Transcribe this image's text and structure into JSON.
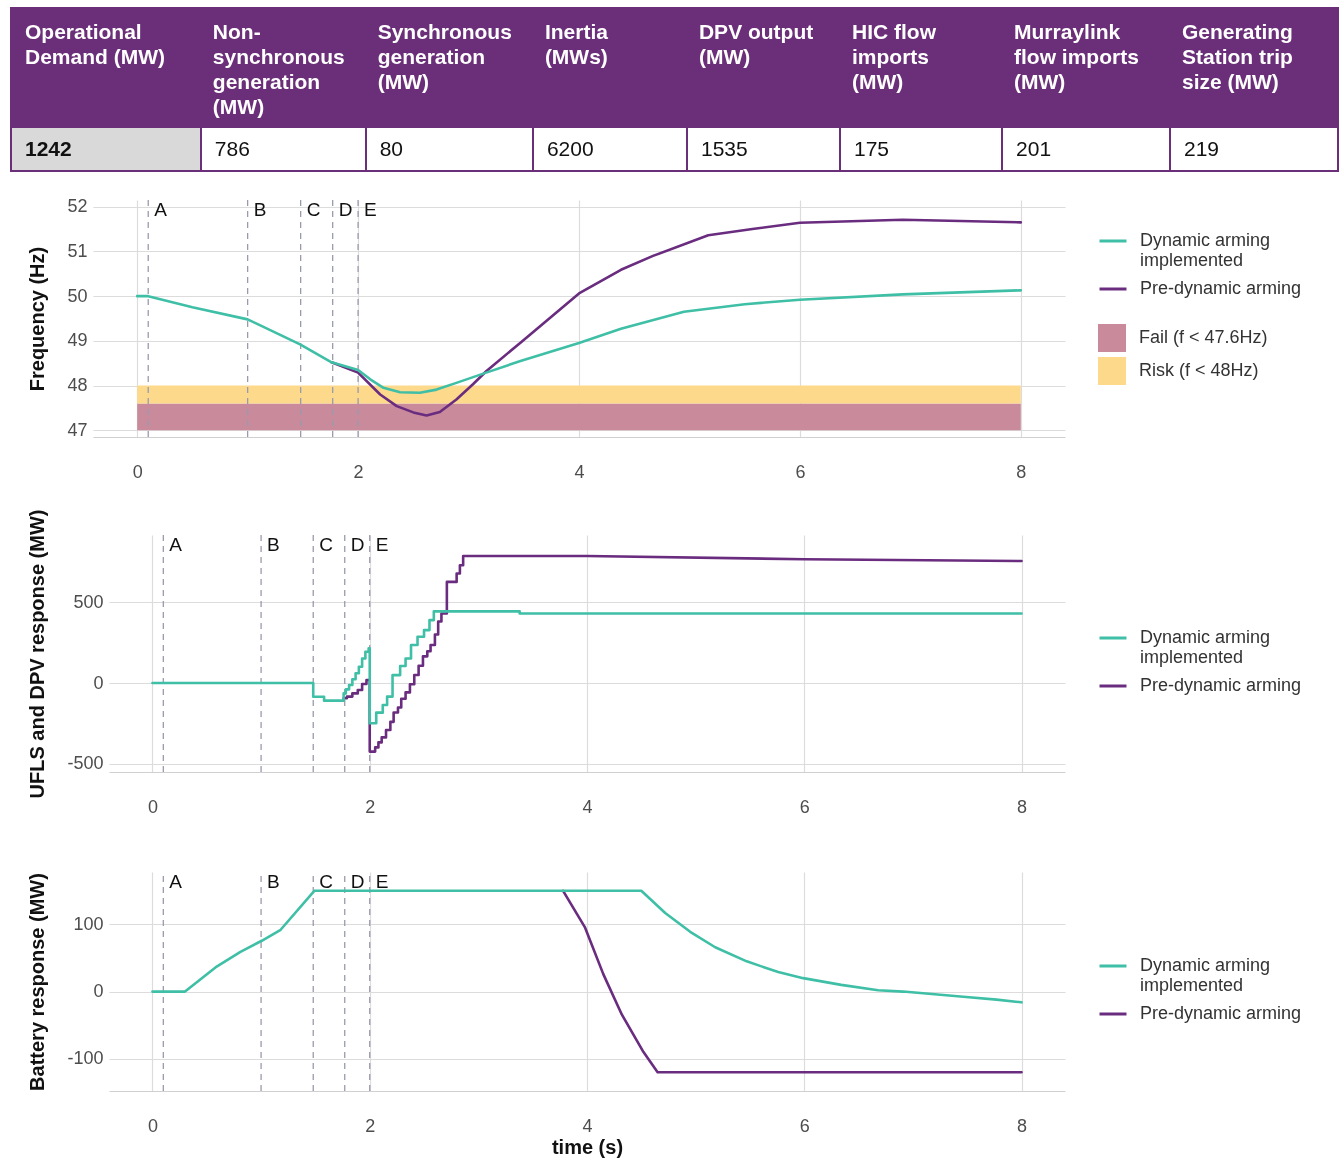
{
  "chart_data": [
    {
      "type": "other",
      "categories": [
        "Operational Demand (MW)",
        "Non-synchronous generation (MW)",
        "Synchronous generation (MW)",
        "Inertia (MWs)",
        "DPV output (MW)",
        "HIC flow imports (MW)",
        "Murraylink flow imports (MW)",
        "Generating Station trip size (MW)"
      ],
      "values": [
        1242,
        786,
        80,
        6200,
        1535,
        175,
        201,
        219
      ],
      "data_labels": true
    },
    {
      "type": "line",
      "ylabel": "Frequency (Hz)",
      "xlim": [
        -0.4,
        8.4
      ],
      "xticks": [
        0,
        2,
        4,
        6,
        8
      ],
      "ylim": [
        46.85,
        52.15
      ],
      "yticks": [
        47,
        48,
        49,
        50,
        51,
        52
      ],
      "grid": true,
      "legend": "right",
      "series": [
        {
          "name": "Dynamic arming implemented",
          "color": "#3fbfa6",
          "x": [
            0,
            0.1,
            0.5,
            1.0,
            1.29,
            1.475,
            1.76,
            2.0,
            2.11,
            2.23,
            2.38,
            2.56,
            2.71,
            2.89,
            3.16,
            3.47,
            4.0,
            4.38,
            4.95,
            5.5,
            6.0,
            6.93,
            8.0
          ],
          "values": [
            50.0,
            50.0,
            49.75,
            49.48,
            49.14,
            48.92,
            48.52,
            48.35,
            48.14,
            47.95,
            47.85,
            47.84,
            47.91,
            48.06,
            48.29,
            48.55,
            48.95,
            49.27,
            49.65,
            49.82,
            49.92,
            50.04,
            50.13
          ]
        },
        {
          "name": "Pre-dynamic arming",
          "color": "#6a2c7f",
          "x": [
            1.76,
            2.0,
            2.2,
            2.35,
            2.5,
            2.62,
            2.74,
            2.89,
            3.04,
            3.16,
            3.47,
            4.0,
            4.38,
            4.67,
            5.17,
            5.57,
            6.0,
            6.93,
            8.0
          ],
          "values": [
            48.52,
            48.29,
            47.8,
            47.54,
            47.4,
            47.33,
            47.41,
            47.69,
            48.03,
            48.32,
            48.96,
            50.06,
            50.59,
            50.9,
            51.36,
            51.5,
            51.64,
            51.71,
            51.65
          ]
        }
      ],
      "ref_lines": [
        {
          "axis": "x",
          "value": 0.1,
          "label": "A",
          "line_style": "dashed",
          "color": "#9a9aae"
        },
        {
          "axis": "x",
          "value": 1,
          "label": "B",
          "line_style": "dashed",
          "color": "#9a9aae"
        },
        {
          "axis": "x",
          "value": 1.48,
          "label": "C",
          "line_style": "dashed",
          "color": "#9a9aae"
        },
        {
          "axis": "x",
          "value": 1.77,
          "label": "D",
          "line_style": "dashed",
          "color": "#9a9aae"
        },
        {
          "axis": "x",
          "value": 2,
          "label": "E",
          "line_style": "dashed",
          "color": "#9a9aae"
        }
      ],
      "bands": [
        {
          "axis": "y",
          "from": 47,
          "to": 47.6,
          "label": "Fail (f < 47.6Hz)",
          "color": "#c98a9c"
        },
        {
          "axis": "y",
          "from": 47.6,
          "to": 48,
          "label": "Risk (f < 48Hz)",
          "color": "#fdd98c"
        }
      ]
    },
    {
      "type": "line",
      "ylabel": "UFLS and DPV response (MW)",
      "xlim": [
        -0.4,
        8.4
      ],
      "xticks": [
        0,
        2,
        4,
        6,
        8
      ],
      "ylim": [
        -550,
        915
      ],
      "yticks": [
        -500,
        0,
        500
      ],
      "grid": true,
      "legend": "right",
      "series": [
        {
          "name": "Dynamic arming implemented",
          "color": "#3fbfa6",
          "x": [
            0,
            1.48,
            1.48,
            1.58,
            1.58,
            1.76,
            1.76,
            1.78,
            1.78,
            1.81,
            1.81,
            1.84,
            1.84,
            1.87,
            1.87,
            1.9,
            1.9,
            1.93,
            1.93,
            1.96,
            1.96,
            1.99,
            1.99,
            2.0,
            2.0,
            2.06,
            2.06,
            2.12,
            2.12,
            2.16,
            2.16,
            2.21,
            2.21,
            2.28,
            2.28,
            2.33,
            2.33,
            2.38,
            2.38,
            2.44,
            2.44,
            2.5,
            2.5,
            2.55,
            2.55,
            2.59,
            2.59,
            2.67,
            2.67,
            3.38,
            3.38,
            8.0
          ],
          "values": [
            0,
            0,
            -85,
            -85,
            -109,
            -109,
            -64,
            -64,
            -39,
            -39,
            -12,
            -12,
            23,
            23,
            60,
            60,
            101,
            101,
            152,
            152,
            193,
            193,
            214,
            214,
            -249,
            -249,
            -183,
            -183,
            -136,
            -136,
            -84,
            -84,
            49,
            49,
            105,
            105,
            152,
            152,
            235,
            235,
            286,
            286,
            327,
            327,
            389,
            389,
            443,
            443,
            443,
            443,
            430,
            430
          ]
        },
        {
          "name": "Pre-dynamic arming",
          "color": "#6a2c7f",
          "x": [
            1.76,
            1.79,
            1.79,
            1.84,
            1.84,
            1.89,
            1.89,
            1.93,
            1.93,
            1.97,
            1.97,
            2.0,
            2.0,
            2.05,
            2.05,
            2.08,
            2.08,
            2.11,
            2.11,
            2.15,
            2.15,
            2.19,
            2.19,
            2.22,
            2.22,
            2.26,
            2.26,
            2.29,
            2.29,
            2.33,
            2.33,
            2.37,
            2.37,
            2.41,
            2.41,
            2.45,
            2.45,
            2.49,
            2.49,
            2.53,
            2.53,
            2.56,
            2.56,
            2.6,
            2.6,
            2.63,
            2.63,
            2.66,
            2.66,
            2.71,
            2.71,
            2.8,
            2.8,
            2.83,
            2.83,
            2.86,
            2.86,
            4.0,
            6.0,
            8.0
          ],
          "values": [
            -94,
            -94,
            -84,
            -84,
            -64,
            -64,
            -43,
            -43,
            -6,
            -6,
            19,
            19,
            -424,
            -424,
            -398,
            -398,
            -367,
            -367,
            -336,
            -336,
            -290,
            -290,
            -240,
            -240,
            -182,
            -182,
            -151,
            -151,
            -97,
            -97,
            -58,
            -58,
            -8,
            -8,
            50,
            50,
            107,
            107,
            165,
            165,
            196,
            196,
            235,
            235,
            300,
            300,
            380,
            380,
            430,
            430,
            625,
            625,
            677,
            677,
            728,
            728,
            785,
            785,
            765,
            754
          ]
        }
      ],
      "ref_lines": [
        {
          "axis": "x",
          "value": 0.1,
          "label": "A",
          "line_style": "dashed",
          "color": "#9a9aae"
        },
        {
          "axis": "x",
          "value": 1,
          "label": "B",
          "line_style": "dashed",
          "color": "#9a9aae"
        },
        {
          "axis": "x",
          "value": 1.48,
          "label": "C",
          "line_style": "dashed",
          "color": "#9a9aae"
        },
        {
          "axis": "x",
          "value": 1.77,
          "label": "D",
          "line_style": "dashed",
          "color": "#9a9aae"
        },
        {
          "axis": "x",
          "value": 2,
          "label": "E",
          "line_style": "dashed",
          "color": "#9a9aae"
        }
      ]
    },
    {
      "type": "line",
      "xlabel": "time (s)",
      "ylabel": "Battery response (MW)",
      "xlim": [
        -0.4,
        8.4
      ],
      "xticks": [
        0,
        2,
        4,
        6,
        8
      ],
      "ylim": [
        -148,
        178
      ],
      "yticks": [
        -100,
        0,
        100
      ],
      "grid": true,
      "legend": "right",
      "series": [
        {
          "name": "Dynamic arming implemented",
          "color": "#3fbfa6",
          "x": [
            0,
            0.3,
            0.58,
            0.81,
            1.01,
            1.18,
            1.49,
            4.5,
            4.72,
            4.95,
            5.18,
            5.47,
            5.76,
            5.99,
            6.34,
            6.68,
            6.91,
            7.2,
            7.49,
            7.77,
            8.0
          ],
          "values": [
            0,
            0,
            36,
            59,
            76,
            92,
            150,
            150,
            117,
            89,
            66,
            45,
            29,
            20,
            10,
            2,
            0,
            -4,
            -8,
            -12,
            -16
          ]
        },
        {
          "name": "Pre-dynamic arming",
          "color": "#6a2c7f",
          "x": [
            3.78,
            3.98,
            4.15,
            4.32,
            4.52,
            4.65,
            8.0
          ],
          "values": [
            150,
            96,
            26,
            -34,
            -90,
            -120,
            -120
          ]
        }
      ],
      "ref_lines": [
        {
          "axis": "x",
          "value": 0.1,
          "label": "A",
          "line_style": "dashed",
          "color": "#9a9aae"
        },
        {
          "axis": "x",
          "value": 1,
          "label": "B",
          "line_style": "dashed",
          "color": "#9a9aae"
        },
        {
          "axis": "x",
          "value": 1.48,
          "label": "C",
          "line_style": "dashed",
          "color": "#9a9aae"
        },
        {
          "axis": "x",
          "value": 1.77,
          "label": "D",
          "line_style": "dashed",
          "color": "#9a9aae"
        },
        {
          "axis": "x",
          "value": 2,
          "label": "E",
          "line_style": "dashed",
          "color": "#9a9aae"
        }
      ]
    }
  ]
}
